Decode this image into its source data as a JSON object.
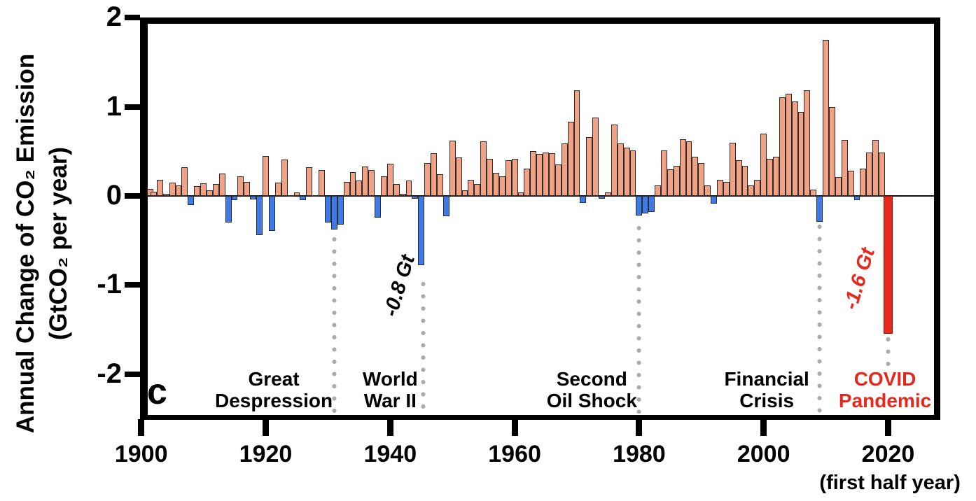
{
  "panel_label": "c",
  "y_axis": {
    "title_line1": "Annual Change of CO₂ Emission",
    "title_line2": "(GtCO₂ per year)",
    "tick_labels": [
      "2",
      "1",
      "0",
      "-1",
      "-2"
    ],
    "tick_values": [
      2,
      1,
      0,
      -1,
      -2
    ]
  },
  "x_axis": {
    "tick_years": [
      1900,
      1920,
      1940,
      1960,
      1980,
      2000,
      2020
    ],
    "note": "(first half year)"
  },
  "colors": {
    "positive_bar": "#F2A284",
    "negative_bar": "#3E79E8",
    "covid_bar": "#E6291C",
    "bar_edge": "#2b2b2b",
    "dotted_line": "#ABABAB",
    "text": "#000000",
    "covid_text": "#E6291C"
  },
  "annotations": [
    {
      "id": "great-depression",
      "lines": [
        "Great",
        "Despression"
      ],
      "marker_year": 1931,
      "label_year": 1921.3,
      "line_top_value": -0.45,
      "line_bottom_value": -2.44,
      "color": "#000000"
    },
    {
      "id": "world-war-2",
      "lines": [
        "World",
        "War II"
      ],
      "marker_year": 1945.3,
      "label_year": 1940.0,
      "line_top_value": -0.95,
      "line_bottom_value": -2.44,
      "color": "#000000"
    },
    {
      "id": "second-oil-shock",
      "lines": [
        "Second",
        "Oil Shock"
      ],
      "marker_year": 1980,
      "label_year": 1972.4,
      "line_top_value": -0.32,
      "line_bottom_value": -2.44,
      "color": "#000000"
    },
    {
      "id": "financial-crisis",
      "lines": [
        "Financial",
        "Crisis"
      ],
      "marker_year": 2009,
      "label_year": 2000.5,
      "line_top_value": -0.31,
      "line_bottom_value": -2.52,
      "color": "#000000"
    },
    {
      "id": "covid-pandemic",
      "lines": [
        "COVID",
        "Pandemic"
      ],
      "marker_year": 2020,
      "label_year": 2019.5,
      "line_top_value": -1.57,
      "line_bottom_value": -1.97,
      "color": "#E6291C"
    }
  ],
  "value_labels": [
    {
      "text": "-0.8 Gt",
      "year": 1941.5,
      "value": -1.02,
      "rotation_deg": -73,
      "color": "#000000"
    },
    {
      "text": "-1.6 Gt",
      "year": 2015.4,
      "value": -0.94,
      "rotation_deg": -73,
      "color": "#E6291C"
    }
  ],
  "chart_data": {
    "type": "bar",
    "title": "",
    "xlabel": "",
    "ylabel": "Annual Change of CO₂ Emission (GtCO₂ per year)",
    "ylim": [
      -2.46,
      2
    ],
    "xlim": [
      1899,
      2028
    ],
    "grid": false,
    "covid_year": 2020,
    "covid_note": "2020 value is first half year, shown in red, labeled -1.6 Gt",
    "points": [
      [
        1901,
        0.08
      ],
      [
        1902,
        0.05
      ],
      [
        1903,
        0.18
      ],
      [
        1904,
        0.02
      ],
      [
        1905,
        0.15
      ],
      [
        1906,
        0.12
      ],
      [
        1907,
        0.32
      ],
      [
        1908,
        -0.1
      ],
      [
        1909,
        0.11
      ],
      [
        1910,
        0.14
      ],
      [
        1911,
        0.06
      ],
      [
        1912,
        0.13
      ],
      [
        1913,
        0.25
      ],
      [
        1914,
        -0.3
      ],
      [
        1915,
        -0.05
      ],
      [
        1916,
        0.22
      ],
      [
        1917,
        0.16
      ],
      [
        1918,
        -0.04
      ],
      [
        1919,
        -0.44
      ],
      [
        1920,
        0.45
      ],
      [
        1921,
        -0.39
      ],
      [
        1922,
        0.15
      ],
      [
        1923,
        0.41
      ],
      [
        1924,
        0.01
      ],
      [
        1925,
        0.04
      ],
      [
        1926,
        -0.05
      ],
      [
        1927,
        0.32
      ],
      [
        1928,
        0.01
      ],
      [
        1929,
        0.29
      ],
      [
        1930,
        -0.3
      ],
      [
        1931,
        -0.38
      ],
      [
        1932,
        -0.32
      ],
      [
        1933,
        0.16
      ],
      [
        1934,
        0.27
      ],
      [
        1935,
        0.17
      ],
      [
        1936,
        0.33
      ],
      [
        1937,
        0.29
      ],
      [
        1938,
        -0.24
      ],
      [
        1939,
        0.22
      ],
      [
        1940,
        0.36
      ],
      [
        1941,
        0.13
      ],
      [
        1942,
        0.02
      ],
      [
        1943,
        0.17
      ],
      [
        1944,
        -0.03
      ],
      [
        1945,
        -0.78
      ],
      [
        1946,
        0.37
      ],
      [
        1947,
        0.48
      ],
      [
        1948,
        0.24
      ],
      [
        1949,
        -0.23
      ],
      [
        1950,
        0.62
      ],
      [
        1951,
        0.43
      ],
      [
        1952,
        0.06
      ],
      [
        1953,
        0.18
      ],
      [
        1954,
        0.13
      ],
      [
        1955,
        0.61
      ],
      [
        1956,
        0.42
      ],
      [
        1957,
        0.26
      ],
      [
        1958,
        0.22
      ],
      [
        1959,
        0.4
      ],
      [
        1960,
        0.42
      ],
      [
        1961,
        0.04
      ],
      [
        1962,
        0.31
      ],
      [
        1963,
        0.5
      ],
      [
        1964,
        0.47
      ],
      [
        1965,
        0.49
      ],
      [
        1966,
        0.48
      ],
      [
        1967,
        0.35
      ],
      [
        1968,
        0.59
      ],
      [
        1969,
        0.83
      ],
      [
        1970,
        1.19
      ],
      [
        1971,
        -0.08
      ],
      [
        1972,
        0.66
      ],
      [
        1973,
        0.88
      ],
      [
        1974,
        -0.03
      ],
      [
        1975,
        0.04
      ],
      [
        1976,
        0.8
      ],
      [
        1977,
        0.59
      ],
      [
        1978,
        0.54
      ],
      [
        1979,
        0.51
      ],
      [
        1980,
        -0.22
      ],
      [
        1981,
        -0.2
      ],
      [
        1982,
        -0.18
      ],
      [
        1983,
        0.12
      ],
      [
        1984,
        0.51
      ],
      [
        1985,
        0.3
      ],
      [
        1986,
        0.34
      ],
      [
        1987,
        0.64
      ],
      [
        1988,
        0.61
      ],
      [
        1989,
        0.44
      ],
      [
        1990,
        0.37
      ],
      [
        1991,
        0.12
      ],
      [
        1992,
        -0.09
      ],
      [
        1993,
        0.18
      ],
      [
        1994,
        0.16
      ],
      [
        1995,
        0.6
      ],
      [
        1996,
        0.4
      ],
      [
        1997,
        0.34
      ],
      [
        1998,
        0.12
      ],
      [
        1999,
        0.18
      ],
      [
        2000,
        0.7
      ],
      [
        2001,
        0.42
      ],
      [
        2002,
        0.44
      ],
      [
        2003,
        1.11
      ],
      [
        2004,
        1.15
      ],
      [
        2005,
        1.06
      ],
      [
        2006,
        0.94
      ],
      [
        2007,
        1.19
      ],
      [
        2008,
        0.07
      ],
      [
        2009,
        -0.29
      ],
      [
        2010,
        1.75
      ],
      [
        2011,
        1.0
      ],
      [
        2012,
        0.21
      ],
      [
        2013,
        0.63
      ],
      [
        2014,
        0.28
      ],
      [
        2015,
        -0.05
      ],
      [
        2016,
        0.31
      ],
      [
        2017,
        0.49
      ],
      [
        2018,
        0.63
      ],
      [
        2019,
        0.49
      ],
      [
        2020,
        -1.55
      ]
    ]
  }
}
